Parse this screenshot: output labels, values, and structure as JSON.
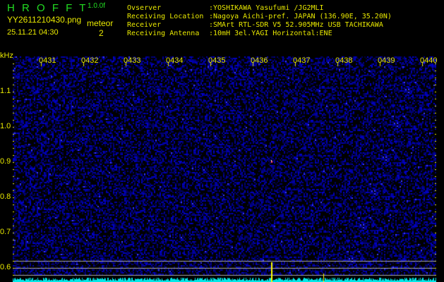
{
  "header": {
    "app_title": "H R O F F T",
    "version": "1.0.0f",
    "filename": "YY2611210430.png",
    "datetime": "25.11.21 04:30",
    "meteor_label": "meteor",
    "meteor_count": "2",
    "info": [
      {
        "label": "Ovserver",
        "value": ":YOSHIKAWA Yasufumi /JG2MLI"
      },
      {
        "label": "Receiving Location",
        "value": ":Nagoya Aichi-pref. JAPAN (136.90E, 35.20N)"
      },
      {
        "label": "Receiver",
        "value": ":SMArt RTL-SDR V5 52.905MHz USB TACHIKAWA"
      },
      {
        "label": "Receiving Antenna",
        "value": ":10mH 3el.YAGI Horizontal:ENE"
      }
    ]
  },
  "spectrogram": {
    "y_unit": "kHz",
    "y_ticks": [
      "1.1",
      "1.0",
      "0.9",
      "0.8",
      "0.7",
      "0.6"
    ],
    "x_ticks": [
      "0431",
      "0432",
      "0433",
      "0434",
      "0435",
      "0436",
      "0437",
      "0438",
      "0439",
      "0440"
    ],
    "colors": {
      "background": "#000000",
      "noise": "#1a1ad0",
      "baseline": "#00e8e8",
      "meteor": "#ffff00",
      "text": "#e8e800",
      "title": "#22dd22"
    }
  }
}
